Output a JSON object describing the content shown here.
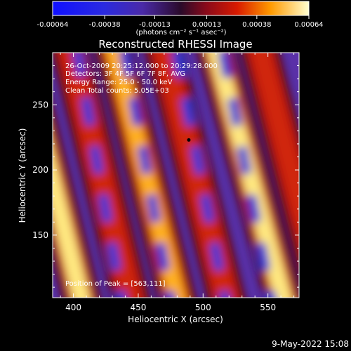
{
  "chart_data": {
    "type": "heatmap",
    "title": "Reconstructed RHESSI Image",
    "xlabel": "Heliocentric X (arcsec)",
    "ylabel": "Heliocentric Y (arcsec)",
    "xlim": [
      384,
      574
    ],
    "ylim": [
      102,
      290
    ],
    "x_ticks": [
      400,
      450,
      500,
      550
    ],
    "y_ticks": [
      150,
      200,
      250
    ],
    "colorbar": {
      "min": -0.00064,
      "max": 0.00064,
      "tick_values": [
        -0.00064,
        -0.00038,
        -0.00013,
        0.00013,
        0.00038,
        0.00064
      ],
      "tick_labels": [
        "-0.00064",
        "-0.00038",
        "-0.00013",
        "0.00013",
        "0.00038",
        "0.00064"
      ],
      "units": "(photons cm⁻² s⁻¹ asec⁻²)"
    },
    "annotations": [
      "26-Oct-2009 20:25:12.000 to 20:29:28.000",
      "Detectors: 3F 4F 5F 6F 7F 8F, AVG",
      "Energy Range: 25.0 - 50.0 keV",
      "Clean   Total counts: 5.05E+03"
    ],
    "peak": {
      "label": "Position of Peak = [563,111]",
      "x": 563,
      "y": 111
    },
    "marker": {
      "x": 489,
      "y": 223
    },
    "bright_ridges": [
      {
        "x_at_ylow": 410,
        "x_at_yhigh": 355,
        "level": 0.95
      },
      {
        "x_at_ylow": 448,
        "x_at_yhigh": 394,
        "level": 0.55
      },
      {
        "x_at_ylow": 484,
        "x_at_yhigh": 428,
        "level": 0.85
      },
      {
        "x_at_ylow": 522,
        "x_at_yhigh": 466,
        "level": 0.6
      },
      {
        "x_at_ylow": 566,
        "x_at_yhigh": 506,
        "level": 1.0
      },
      {
        "x_at_ylow": 598,
        "x_at_yhigh": 540,
        "level": 0.55
      }
    ]
  },
  "footer": {
    "date": "9-May-2022 15:08"
  }
}
